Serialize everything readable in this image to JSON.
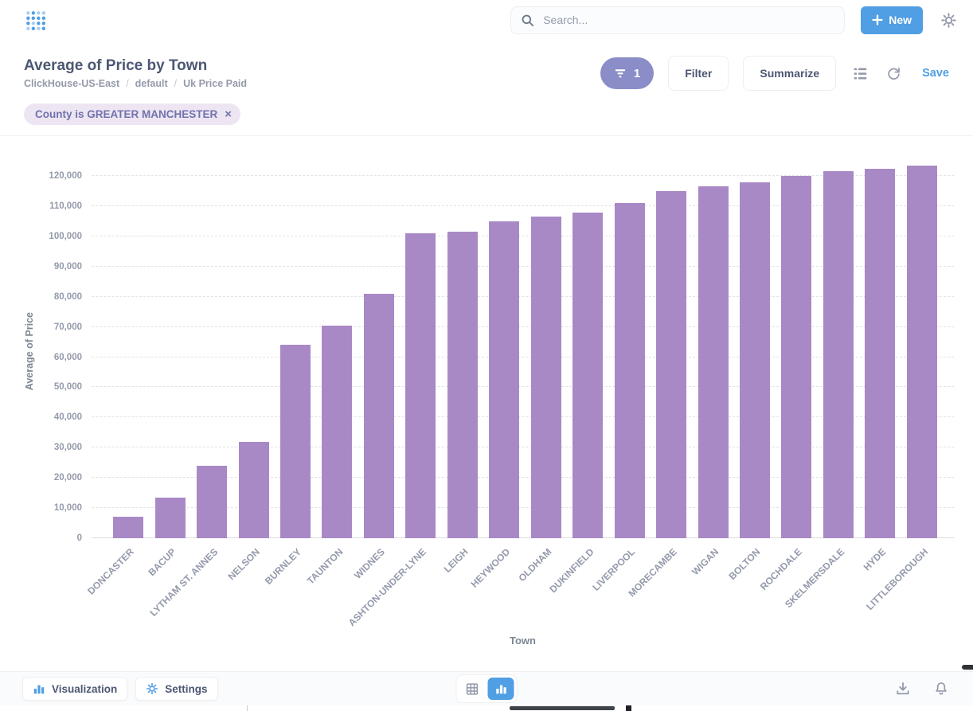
{
  "colors": {
    "brand": "#509EE3",
    "bar": "#A989C5",
    "title_text": "#4C5773",
    "muted_text": "#949AAB",
    "filter_pill_bg": "#8A8DC7",
    "chip_bg": "#EDE6F2",
    "chip_text": "#7172AD"
  },
  "header": {
    "search": {
      "placeholder": "Search..."
    },
    "new_button_label": "New"
  },
  "question_header": {
    "title": "Average of Price by Town",
    "breadcrumb": [
      "ClickHouse-US-East",
      "default",
      "Uk Price Paid"
    ],
    "separator": "/",
    "filter_pill_count": "1",
    "filter_button_label": "Filter",
    "summarize_button_label": "Summarize",
    "save_label": "Save"
  },
  "filter_chips": [
    {
      "label": "County is GREATER MANCHESTER",
      "close": "×"
    }
  ],
  "chart_data": {
    "type": "bar",
    "title": "Average of Price by Town",
    "xlabel": "Town",
    "ylabel": "Average of Price",
    "ylim": [
      0,
      124000
    ],
    "y_ticks": [
      0,
      10000,
      20000,
      30000,
      40000,
      50000,
      60000,
      70000,
      80000,
      90000,
      100000,
      110000,
      120000
    ],
    "grid": "horizontal-dashed",
    "legend": "none",
    "bar_color": "#A989C5",
    "categories": [
      "DONCASTER",
      "BACUP",
      "LYTHAM ST. ANNES",
      "NELSON",
      "BURNLEY",
      "TAUNTON",
      "WIDNES",
      "ASHTON-UNDER-LYNE",
      "LEIGH",
      "HEYWOOD",
      "OLDHAM",
      "DUKINFIELD",
      "LIVERPOOL",
      "MORECAMBE",
      "WIGAN",
      "BOLTON",
      "ROCHDALE",
      "SKELMERSDALE",
      "HYDE",
      "LITTLEBOROUGH"
    ],
    "values": [
      7000,
      13500,
      24000,
      32000,
      64000,
      70500,
      81000,
      101000,
      101500,
      105000,
      106500,
      108000,
      111000,
      115000,
      116500,
      118000,
      120000,
      121500,
      122500,
      123500
    ]
  },
  "footer": {
    "visualization_label": "Visualization",
    "settings_label": "Settings"
  },
  "icons": {
    "logo": "metabase-dot-grid",
    "search": "magnifier",
    "new": "plus",
    "settings_top": "gear",
    "filter_pill": "funnel",
    "editor": "notebook-list",
    "refresh": "circular-arrow",
    "chip_close": "x",
    "visualization": "bar-chart",
    "settings_footer": "gear",
    "table_toggle": "table-grid",
    "chart_toggle": "bar-chart",
    "download": "download-arrow",
    "alerts": "bell"
  }
}
